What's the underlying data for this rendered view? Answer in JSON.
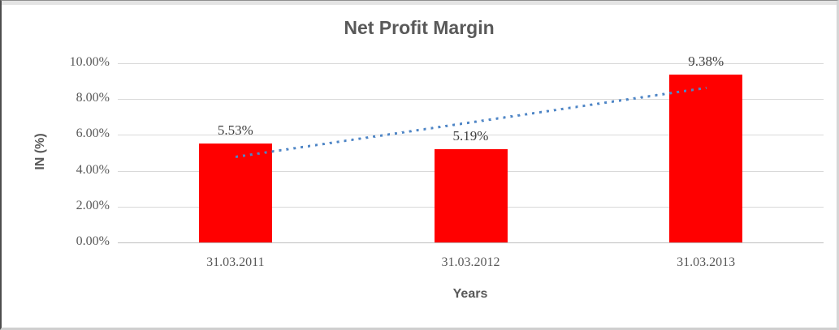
{
  "chart_data": {
    "type": "bar",
    "title": "Net Profit Margin",
    "xlabel": "Years",
    "ylabel": "IN (%)",
    "categories": [
      "31.03.2011",
      "31.03.2012",
      "31.03.2013"
    ],
    "values": [
      5.53,
      5.19,
      9.38
    ],
    "data_labels": [
      "5.53%",
      "5.19%",
      "9.38%"
    ],
    "ylim": [
      0,
      10
    ],
    "ytick_step": 2,
    "ytick_labels": [
      "0.00%",
      "2.00%",
      "4.00%",
      "6.00%",
      "8.00%",
      "10.00%"
    ],
    "grid": true,
    "legend": "none",
    "bar_color": "#ff0000",
    "trendline": {
      "type": "linear",
      "style": "dotted",
      "color": "#4f86c6",
      "start_value": 4.78,
      "end_value": 8.63
    }
  },
  "colors": {
    "title_text": "#595959",
    "axis_text": "#595959",
    "data_label_text": "#404040",
    "gridline": "#d9d9d9"
  }
}
